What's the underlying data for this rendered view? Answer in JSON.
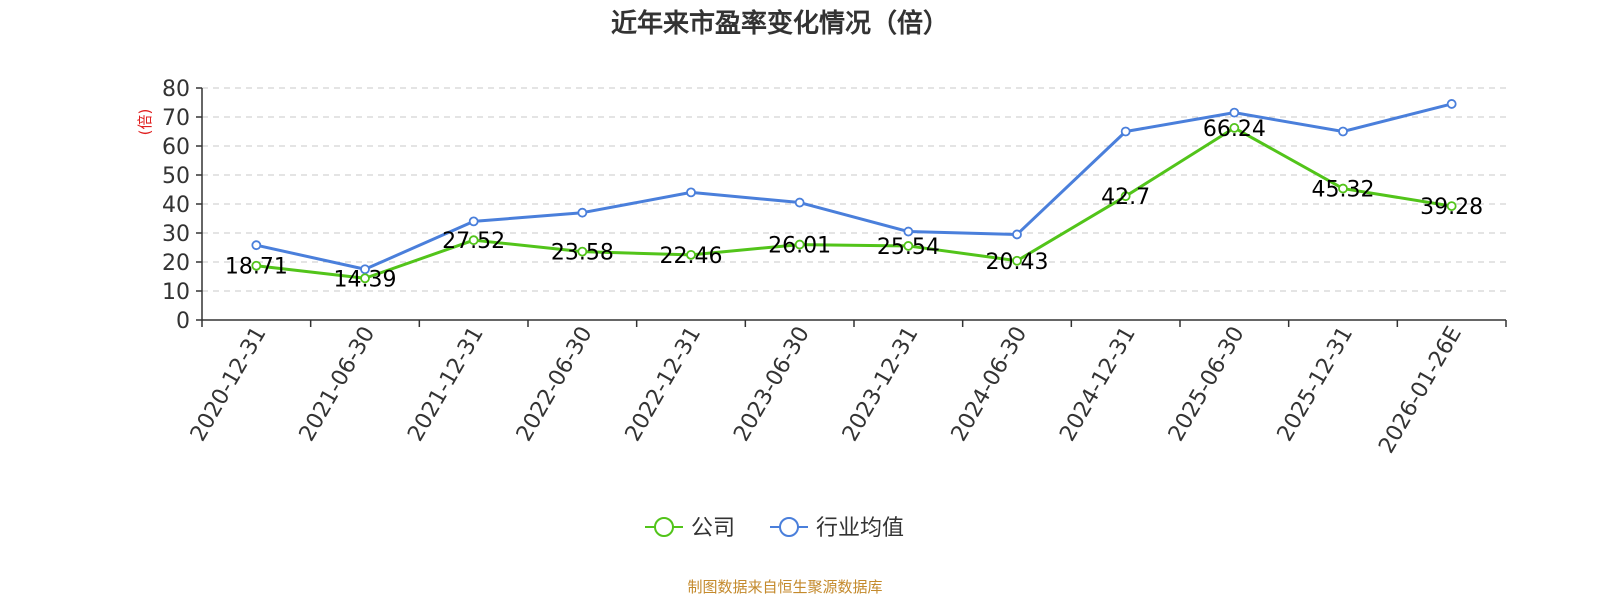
{
  "chart_data": {
    "type": "line",
    "title": "近年来市盈率变化情况（倍）",
    "ylabel": "(倍)",
    "xlabel": "",
    "ylim": [
      0,
      80
    ],
    "yticks": [
      0,
      10,
      20,
      30,
      40,
      50,
      60,
      70,
      80
    ],
    "grid": true,
    "legend_position": "bottom-center",
    "categories": [
      "2020-12-31",
      "2021-06-30",
      "2021-12-31",
      "2022-06-30",
      "2022-12-31",
      "2023-06-30",
      "2023-12-31",
      "2024-06-30",
      "2024-12-31",
      "2025-06-30",
      "2025-12-31",
      "2026-01-26E"
    ],
    "series": [
      {
        "name": "公司",
        "color": "#52c41a",
        "values": [
          18.71,
          14.39,
          27.52,
          23.58,
          22.46,
          26.01,
          25.54,
          20.43,
          42.7,
          66.24,
          45.32,
          39.28
        ],
        "labels": [
          "18.71",
          "14.39",
          "27.52",
          "23.58",
          "22.46",
          "26.01",
          "25.54",
          "20.43",
          "42.7",
          "66.24",
          "45.32",
          "39.28"
        ]
      },
      {
        "name": "行业均值",
        "color": "#4a7fdb",
        "values": [
          25.8,
          17.5,
          34.0,
          37.0,
          44.0,
          40.5,
          30.5,
          29.5,
          65.0,
          71.5,
          65.0,
          74.5
        ]
      }
    ],
    "source": "制图数据来自恒生聚源数据库"
  }
}
